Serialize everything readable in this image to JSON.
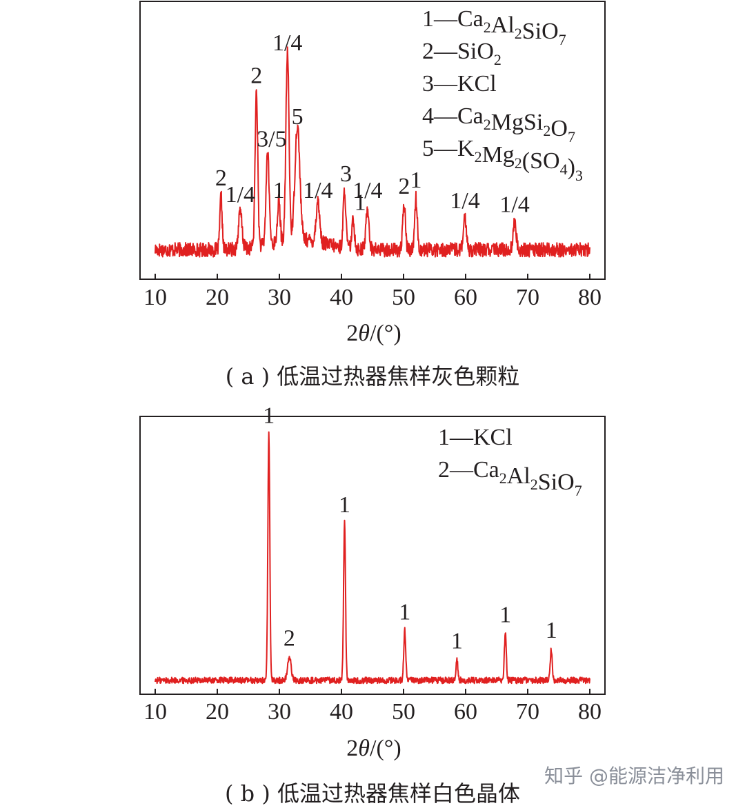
{
  "chart_data": [
    {
      "type": "line",
      "caption": "( a ) 低温过热器焦样灰色颗粒",
      "xlabel": "2θ/(°)",
      "xlim": [
        10,
        80
      ],
      "xticks": [
        10,
        20,
        30,
        40,
        50,
        60,
        70,
        80
      ],
      "baseline": 0.1,
      "noise": 0.035,
      "color": "#e02020",
      "legend_position": "top-right",
      "legend": [
        {
          "num": "1",
          "parts": [
            [
              "Ca",
              ""
            ],
            [
              "2",
              "sub"
            ],
            [
              "Al",
              ""
            ],
            [
              "2",
              "sub"
            ],
            [
              "SiO",
              ""
            ],
            [
              "7",
              "sub"
            ]
          ]
        },
        {
          "num": "2",
          "parts": [
            [
              "SiO",
              ""
            ],
            [
              "2",
              "sub"
            ]
          ]
        },
        {
          "num": "3",
          "parts": [
            [
              "KCl",
              ""
            ]
          ]
        },
        {
          "num": "4",
          "parts": [
            [
              "Ca",
              ""
            ],
            [
              "2",
              "sub"
            ],
            [
              "MgSi",
              ""
            ],
            [
              "2",
              "sub"
            ],
            [
              "O",
              ""
            ],
            [
              "7",
              "sub"
            ]
          ]
        },
        {
          "num": "5",
          "parts": [
            [
              "K",
              ""
            ],
            [
              "2",
              "sub"
            ],
            [
              "Mg",
              ""
            ],
            [
              "2",
              "sub"
            ],
            [
              "(SO",
              ""
            ],
            [
              "4",
              "sub"
            ],
            [
              ")",
              ""
            ],
            [
              "3",
              "sub"
            ]
          ]
        }
      ],
      "peaks": [
        {
          "x": 20.6,
          "h": 0.26,
          "w": 0.25,
          "label": "2"
        },
        {
          "x": 23.7,
          "h": 0.18,
          "w": 0.4,
          "label": "1/4"
        },
        {
          "x": 26.3,
          "h": 0.76,
          "w": 0.3,
          "label": "2"
        },
        {
          "x": 28.1,
          "h": 0.45,
          "w": 0.35,
          "label": "3/5"
        },
        {
          "x": 29.9,
          "h": 0.2,
          "w": 0.3,
          "label": "1"
        },
        {
          "x": 31.3,
          "h": 0.92,
          "w": 0.35,
          "label": "1/4"
        },
        {
          "x": 32.9,
          "h": 0.56,
          "w": 0.55,
          "label": "5"
        },
        {
          "x": 36.2,
          "h": 0.2,
          "w": 0.4,
          "label": "1/4"
        },
        {
          "x": 40.5,
          "h": 0.28,
          "w": 0.3,
          "label": "3"
        },
        {
          "x": 41.9,
          "h": 0.14,
          "w": 0.3,
          "label": "1"
        },
        {
          "x": 44.2,
          "h": 0.2,
          "w": 0.35,
          "label": "1/4"
        },
        {
          "x": 50.1,
          "h": 0.22,
          "w": 0.3,
          "label": "2"
        },
        {
          "x": 52.0,
          "h": 0.25,
          "w": 0.3,
          "label": "1"
        },
        {
          "x": 59.9,
          "h": 0.15,
          "w": 0.35,
          "label": "1/4"
        },
        {
          "x": 67.9,
          "h": 0.13,
          "w": 0.35,
          "label": "1/4"
        }
      ]
    },
    {
      "type": "line",
      "caption": "( b ) 低温过热器焦样白色晶体",
      "xlabel": "2θ/(°)",
      "xlim": [
        10,
        80
      ],
      "xticks": [
        10,
        20,
        30,
        40,
        50,
        60,
        70,
        80
      ],
      "baseline": 0.04,
      "noise": 0.012,
      "color": "#e02020",
      "legend_position": "top-right",
      "legend": [
        {
          "num": "1",
          "parts": [
            [
              "KCl",
              ""
            ]
          ]
        },
        {
          "num": "2",
          "parts": [
            [
              "Ca",
              ""
            ],
            [
              "2",
              "sub"
            ],
            [
              "Al",
              ""
            ],
            [
              "2",
              "sub"
            ],
            [
              "SiO",
              ""
            ],
            [
              "7",
              "sub"
            ]
          ]
        }
      ],
      "peaks": [
        {
          "x": 28.3,
          "h": 0.94,
          "w": 0.22,
          "label": "1"
        },
        {
          "x": 31.6,
          "h": 0.09,
          "w": 0.4,
          "label": "2"
        },
        {
          "x": 40.5,
          "h": 0.6,
          "w": 0.22,
          "label": "1"
        },
        {
          "x": 50.2,
          "h": 0.19,
          "w": 0.22,
          "label": "1"
        },
        {
          "x": 58.6,
          "h": 0.08,
          "w": 0.2,
          "label": "1"
        },
        {
          "x": 66.4,
          "h": 0.18,
          "w": 0.22,
          "label": "1"
        },
        {
          "x": 73.8,
          "h": 0.12,
          "w": 0.22,
          "label": "1"
        }
      ]
    }
  ],
  "watermark": {
    "text": "知乎 @能源洁净利用"
  }
}
